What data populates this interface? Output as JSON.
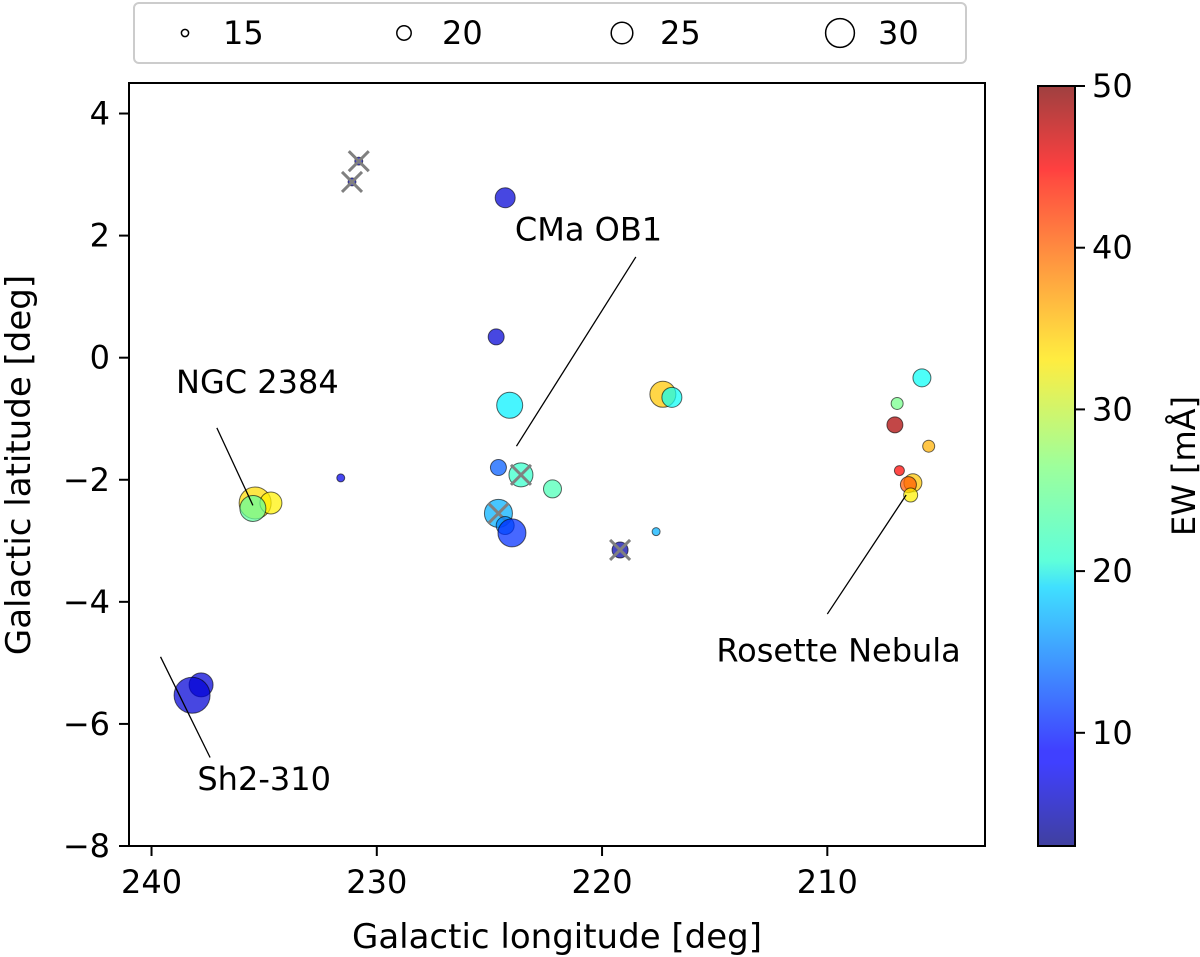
{
  "chart_data": {
    "type": "scatter",
    "xlabel": "Galactic longitude [deg]",
    "ylabel": "Galactic latitude [deg]",
    "xlim": [
      241,
      203
    ],
    "ylim": [
      -8,
      4.5
    ],
    "xticks": [
      240,
      230,
      220,
      210
    ],
    "yticks": [
      4,
      2,
      0,
      -2,
      -4,
      -6,
      -8
    ],
    "colorbar": {
      "label": "EW [mÅ]",
      "range": [
        3,
        50
      ],
      "ticks": [
        10,
        20,
        30,
        40,
        50
      ],
      "colormap": "jet"
    },
    "size_legend": {
      "values": [
        15,
        20,
        25,
        30
      ],
      "labels": [
        "15",
        "20",
        "25",
        "30"
      ],
      "placement": "top-center-outside"
    },
    "points": [
      {
        "l": 230.8,
        "b": 3.22,
        "size": 14,
        "ew": 7,
        "flag": true
      },
      {
        "l": 231.1,
        "b": 2.88,
        "size": 14,
        "ew": 7,
        "flag": true
      },
      {
        "l": 224.3,
        "b": 2.62,
        "size": 20,
        "ew": 7,
        "flag": false
      },
      {
        "l": 224.7,
        "b": 0.34,
        "size": 18,
        "ew": 7,
        "flag": false
      },
      {
        "l": 224.1,
        "b": -0.78,
        "size": 23,
        "ew": 20,
        "flag": false
      },
      {
        "l": 224.6,
        "b": -1.8,
        "size": 18,
        "ew": 13,
        "flag": false
      },
      {
        "l": 223.6,
        "b": -1.92,
        "size": 22,
        "ew": 23,
        "flag": true
      },
      {
        "l": 222.2,
        "b": -2.15,
        "size": 19,
        "ew": 24,
        "flag": false
      },
      {
        "l": 224.6,
        "b": -2.55,
        "size": 24,
        "ew": 17,
        "flag": true
      },
      {
        "l": 224.3,
        "b": -2.75,
        "size": 19,
        "ew": 15,
        "flag": false
      },
      {
        "l": 224.0,
        "b": -2.87,
        "size": 24,
        "ew": 11,
        "flag": false
      },
      {
        "l": 219.2,
        "b": -3.15,
        "size": 18,
        "ew": 5,
        "flag": true
      },
      {
        "l": 217.6,
        "b": -2.85,
        "size": 13,
        "ew": 17,
        "flag": false
      },
      {
        "l": 217.3,
        "b": -0.6,
        "size": 23,
        "ew": 35,
        "flag": false
      },
      {
        "l": 216.9,
        "b": -0.65,
        "size": 20,
        "ew": 21,
        "flag": false
      },
      {
        "l": 231.6,
        "b": -1.97,
        "size": 14,
        "ew": 8,
        "flag": false
      },
      {
        "l": 235.4,
        "b": -2.38,
        "size": 26,
        "ew": 34,
        "flag": false
      },
      {
        "l": 234.7,
        "b": -2.38,
        "size": 21,
        "ew": 33,
        "flag": false
      },
      {
        "l": 235.5,
        "b": -2.47,
        "size": 23,
        "ew": 25,
        "flag": false
      },
      {
        "l": 237.8,
        "b": -5.36,
        "size": 22,
        "ew": 7,
        "flag": false
      },
      {
        "l": 238.2,
        "b": -5.53,
        "size": 28,
        "ew": 7,
        "flag": false
      },
      {
        "l": 205.8,
        "b": -0.33,
        "size": 19,
        "ew": 21,
        "flag": false
      },
      {
        "l": 206.9,
        "b": -0.75,
        "size": 16,
        "ew": 26,
        "flag": false
      },
      {
        "l": 207.0,
        "b": -1.1,
        "size": 18,
        "ew": 48,
        "flag": false
      },
      {
        "l": 205.5,
        "b": -1.45,
        "size": 16,
        "ew": 36,
        "flag": false
      },
      {
        "l": 206.8,
        "b": -1.85,
        "size": 15,
        "ew": 44,
        "flag": false
      },
      {
        "l": 206.2,
        "b": -2.05,
        "size": 19,
        "ew": 35,
        "flag": false
      },
      {
        "l": 206.4,
        "b": -2.08,
        "size": 18,
        "ew": 40,
        "flag": false
      },
      {
        "l": 206.3,
        "b": -2.25,
        "size": 17,
        "ew": 33,
        "flag": false
      }
    ],
    "annotations": [
      {
        "text": "NGC 2384",
        "text_l": 235.3,
        "text_b": -0.4,
        "line": [
          [
            237.1,
            -1.15
          ],
          [
            235.5,
            -2.42
          ]
        ]
      },
      {
        "text": "CMa OB1",
        "text_l": 220.6,
        "text_b": 2.1,
        "line": [
          [
            218.5,
            1.65
          ],
          [
            223.8,
            -1.45
          ]
        ]
      },
      {
        "text": "Rosette Nebula",
        "text_l": 209.5,
        "text_b": -4.8,
        "line": [
          [
            210.0,
            -4.2
          ],
          [
            206.5,
            -2.25
          ]
        ]
      },
      {
        "text": "Sh2-310",
        "text_l": 235.0,
        "text_b": -6.9,
        "line": [
          [
            239.6,
            -4.9
          ],
          [
            237.4,
            -6.55
          ]
        ]
      }
    ]
  }
}
